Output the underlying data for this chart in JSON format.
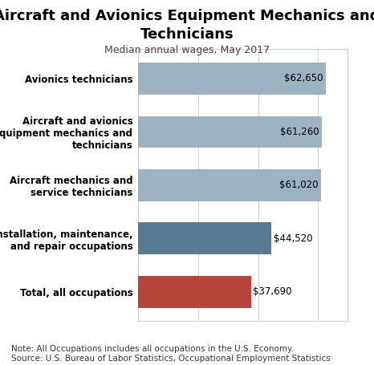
{
  "title": "Aircraft and Avionics Equipment Mechanics and\nTechnicians",
  "subtitle": "Median annual wages, May 2017",
  "categories": [
    "Total, all occupations",
    "Installation, maintenance,\nand repair occupations",
    "Aircraft mechanics and\nservice technicians",
    "Aircraft and avionics\nequipment mechanics and\ntechnicians",
    "Avionics technicians"
  ],
  "values": [
    37690,
    44520,
    61020,
    61260,
    62650
  ],
  "labels": [
    "$37,690",
    "$44,520",
    "$61,020",
    "$61,260",
    "$62,650"
  ],
  "bar_colors": [
    "#b5443a",
    "#5a7a94",
    "#9eb3c2",
    "#9eb3c2",
    "#9eb3c2"
  ],
  "label_inside": [
    false,
    false,
    true,
    true,
    true
  ],
  "xlim": [
    0,
    70000
  ],
  "note_line1": "Note: All Occupations includes all occupations in the U.S. Economy.",
  "note_line2": "Source: U.S. Bureau of Labor Statistics, Occupational Employment Statistics",
  "bg_color": "#ffffff",
  "bar_height": 0.6,
  "title_fontsize": 13,
  "subtitle_fontsize": 9,
  "label_fontsize": 8.5,
  "category_fontsize": 8.5,
  "note_fontsize": 7.5,
  "grid_color": "#d0d0d0",
  "box_color": "#cccccc"
}
